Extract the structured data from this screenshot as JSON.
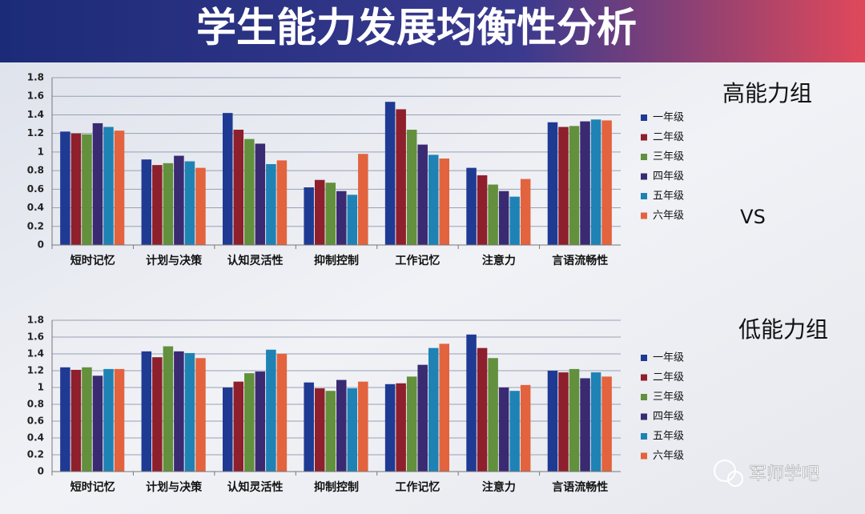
{
  "header": {
    "title": "学生能力发展均衡性分析"
  },
  "vs": "VS",
  "watermark": "军师学吧",
  "chart_data": [
    {
      "type": "bar",
      "title": "高能力组",
      "categories": [
        "短时记忆",
        "计划与决策",
        "认知灵活性",
        "抑制控制",
        "工作记忆",
        "注意力",
        "言语流畅性"
      ],
      "series": [
        {
          "name": "一年级",
          "color": "#1f3a93",
          "values": [
            1.22,
            0.92,
            1.42,
            0.62,
            1.54,
            0.83,
            1.32
          ]
        },
        {
          "name": "二年级",
          "color": "#8e1f2c",
          "values": [
            1.2,
            0.86,
            1.24,
            0.7,
            1.46,
            0.75,
            1.27
          ]
        },
        {
          "name": "三年级",
          "color": "#62903c",
          "values": [
            1.19,
            0.88,
            1.14,
            0.67,
            1.24,
            0.65,
            1.28
          ]
        },
        {
          "name": "四年级",
          "color": "#3a2a72",
          "values": [
            1.31,
            0.96,
            1.09,
            0.58,
            1.08,
            0.58,
            1.33
          ]
        },
        {
          "name": "五年级",
          "color": "#1f82b4",
          "values": [
            1.27,
            0.9,
            0.87,
            0.54,
            0.97,
            0.52,
            1.35
          ]
        },
        {
          "name": "六年级",
          "color": "#e2633e",
          "values": [
            1.23,
            0.83,
            0.91,
            0.98,
            0.93,
            0.71,
            1.34
          ]
        }
      ],
      "ylim": [
        0,
        1.8
      ],
      "yticks": [
        0,
        0.2,
        0.4,
        0.6,
        0.8,
        1,
        1.2,
        1.4,
        1.6,
        1.8
      ],
      "grid": true
    },
    {
      "type": "bar",
      "title": "低能力组",
      "categories": [
        "短时记忆",
        "计划与决策",
        "认知灵活性",
        "抑制控制",
        "工作记忆",
        "注意力",
        "言语流畅性"
      ],
      "series": [
        {
          "name": "一年级",
          "color": "#1f3a93",
          "values": [
            1.24,
            1.43,
            1.0,
            1.06,
            1.04,
            1.63,
            1.2
          ]
        },
        {
          "name": "二年级",
          "color": "#8e1f2c",
          "values": [
            1.21,
            1.36,
            1.07,
            0.99,
            1.05,
            1.47,
            1.18
          ]
        },
        {
          "name": "三年级",
          "color": "#62903c",
          "values": [
            1.24,
            1.49,
            1.17,
            0.96,
            1.13,
            1.35,
            1.22
          ]
        },
        {
          "name": "四年级",
          "color": "#3a2a72",
          "values": [
            1.14,
            1.43,
            1.19,
            1.09,
            1.27,
            1.0,
            1.11
          ]
        },
        {
          "name": "五年级",
          "color": "#1f82b4",
          "values": [
            1.22,
            1.41,
            1.45,
            0.99,
            1.47,
            0.96,
            1.18
          ]
        },
        {
          "name": "六年级",
          "color": "#e2633e",
          "values": [
            1.22,
            1.35,
            1.4,
            1.07,
            1.52,
            1.03,
            1.13
          ]
        }
      ],
      "ylim": [
        0,
        1.8
      ],
      "yticks": [
        0,
        0.2,
        0.4,
        0.6,
        0.8,
        1,
        1.2,
        1.4,
        1.6,
        1.8
      ],
      "grid": true
    }
  ]
}
